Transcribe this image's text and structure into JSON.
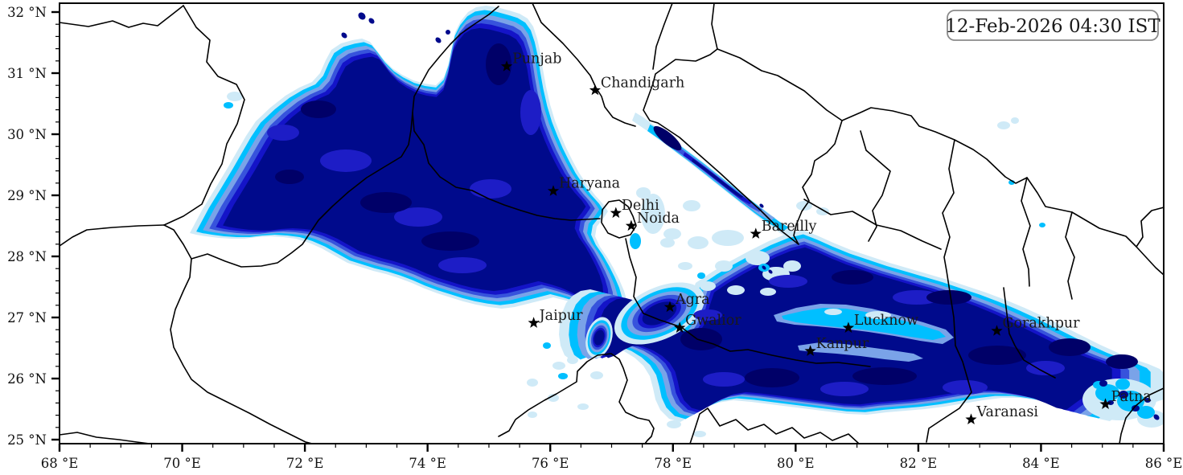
{
  "figure": {
    "timestamp": "12-Feb-2026 04:30 IST"
  },
  "axes": {
    "lon_min": 68,
    "lon_max": 86,
    "lat_min": 25,
    "lat_max": 32,
    "x_major_ticks": [
      {
        "value": 68,
        "label": "68 °E"
      },
      {
        "value": 70,
        "label": "70 °E"
      },
      {
        "value": 72,
        "label": "72 °E"
      },
      {
        "value": 74,
        "label": "74 °E"
      },
      {
        "value": 76,
        "label": "76 °E"
      },
      {
        "value": 78,
        "label": "78 °E"
      },
      {
        "value": 80,
        "label": "80 °E"
      },
      {
        "value": 82,
        "label": "82 °E"
      },
      {
        "value": 84,
        "label": "84 °E"
      },
      {
        "value": 86,
        "label": "86 °E"
      }
    ],
    "y_major_ticks": [
      {
        "value": 25,
        "label": "25 °N"
      },
      {
        "value": 26,
        "label": "26 °N"
      },
      {
        "value": 27,
        "label": "27 °N"
      },
      {
        "value": 28,
        "label": "28 °N"
      },
      {
        "value": 29,
        "label": "29 °N"
      },
      {
        "value": 30,
        "label": "30 °N"
      },
      {
        "value": 31,
        "label": "31 °N"
      },
      {
        "value": 32,
        "label": "32 °N"
      }
    ],
    "x_minor_step": 0.5,
    "y_minor_step": 0.2
  },
  "cities": [
    {
      "name": "Punjab",
      "lon": 75.29,
      "lat": 31.11
    },
    {
      "name": "Chandigarh",
      "lon": 76.73,
      "lat": 30.72
    },
    {
      "name": "Haryana",
      "lon": 76.05,
      "lat": 29.07
    },
    {
      "name": "Delhi",
      "lon": 77.07,
      "lat": 28.71
    },
    {
      "name": "Noida",
      "lon": 77.32,
      "lat": 28.5
    },
    {
      "name": "Bareilly",
      "lon": 79.35,
      "lat": 28.37
    },
    {
      "name": "Agra",
      "lon": 77.95,
      "lat": 27.17
    },
    {
      "name": "Jaipur",
      "lon": 75.73,
      "lat": 26.91
    },
    {
      "name": "Gwalior",
      "lon": 78.11,
      "lat": 26.83
    },
    {
      "name": "Lucknow",
      "lon": 80.86,
      "lat": 26.83
    },
    {
      "name": "Kanpur",
      "lon": 80.24,
      "lat": 26.45
    },
    {
      "name": "Gorakhpur",
      "lon": 83.28,
      "lat": 26.78
    },
    {
      "name": "Patna",
      "lon": 85.05,
      "lat": 25.58
    },
    {
      "name": "Varanasi",
      "lon": 82.86,
      "lat": 25.33
    }
  ],
  "shading_palette": {
    "levels": [
      "#cfeaf7",
      "#00bfff",
      "#7aa3e8",
      "#3753dc",
      "#1414c8",
      "#000a8c"
    ],
    "dark_spot": "#000068",
    "mottle": "#1d1dc6"
  },
  "colors": {
    "boundary": "#000000",
    "frame": "#000000",
    "label_text": "#1a1a1a",
    "timestamp_border": "#8a8a8a"
  }
}
